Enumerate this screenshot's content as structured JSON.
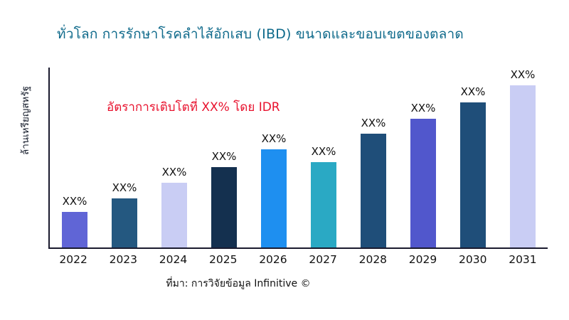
{
  "page": {
    "title": "ทั่วโลก การรักษาโรคลำไส้อักเสบ (IBD) ขนาดและขอบเขตของตลาด",
    "title_color": "#0f6a8b",
    "annotation": "อัตราการเติบโตที่ XX% โดย IDR",
    "annotation_color": "#e8112d",
    "y_axis_label": "ล้านเหรียญสหรัฐ",
    "source": "ที่มา: การวิจัยข้อมูล Infinitive ©"
  },
  "chart_data": {
    "type": "bar",
    "title": "ทั่วโลก การรักษาโรคลำไส้อักเสบ (IBD) ขนาดและขอบเขตของตลาด",
    "xlabel": "",
    "ylabel": "ล้านเหรียญสหรัฐ",
    "legend": false,
    "grid": false,
    "categories": [
      "2022",
      "2023",
      "2024",
      "2025",
      "2026",
      "2027",
      "2028",
      "2029",
      "2030",
      "2031"
    ],
    "bar_labels": [
      "XX%",
      "XX%",
      "XX%",
      "XX%",
      "XX%",
      "XX%",
      "XX%",
      "XX%",
      "XX%",
      "XX%"
    ],
    "values_relative": [
      50,
      70,
      92,
      114,
      139,
      121,
      161,
      182,
      206,
      230
    ],
    "ylim": [
      0,
      255
    ],
    "colors": [
      "#6065d6",
      "#245880",
      "#c9cdf4",
      "#14304f",
      "#1e8ff0",
      "#2aa9c4",
      "#1f4e79",
      "#5157cc",
      "#1f4e79",
      "#c9cdf4"
    ],
    "annotation": "อัตราการเติบโตที่ XX% โดย IDR"
  }
}
